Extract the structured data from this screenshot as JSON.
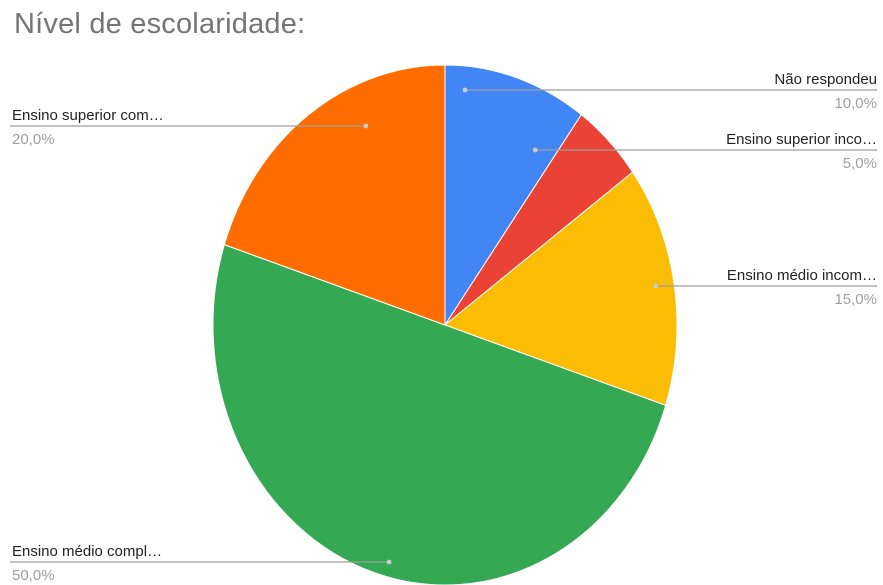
{
  "chart_data": {
    "type": "pie",
    "title": "Nível de escolaridade:",
    "slices": [
      {
        "label": "Não respondeu",
        "value": 10.0,
        "value_label": "10,0%",
        "color": "#4285F4"
      },
      {
        "label": "Ensino superior inco…",
        "value": 5.0,
        "value_label": "5,0%",
        "color": "#EA4335"
      },
      {
        "label": "Ensino médio incom…",
        "value": 15.0,
        "value_label": "15,0%",
        "color": "#FBBC04"
      },
      {
        "label": "Ensino médio compl…",
        "value": 50.0,
        "value_label": "50,0%",
        "color": "#34A853"
      },
      {
        "label": "Ensino superior com…",
        "value": 20.0,
        "value_label": "20,0%",
        "color": "#FF6D01"
      }
    ],
    "start_angle": "12 o'clock",
    "direction": "clockwise",
    "legend": "callout labels"
  }
}
